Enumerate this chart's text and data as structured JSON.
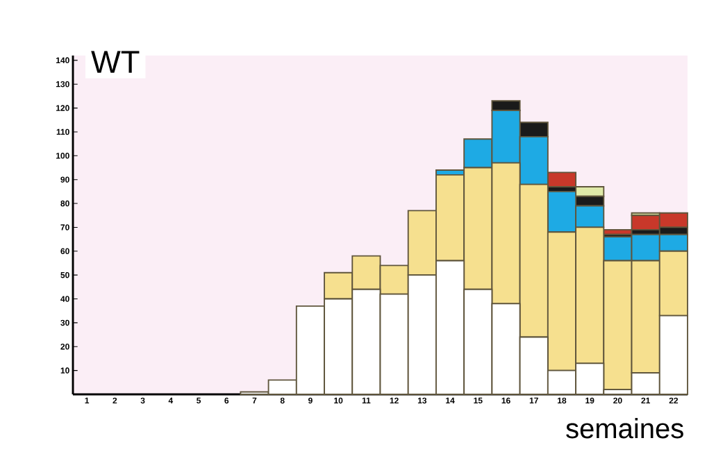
{
  "chart_data": {
    "type": "bar",
    "stacked": true,
    "annotations": [
      "WT"
    ],
    "xlabel": "semaines",
    "categories": [
      "1",
      "2",
      "3",
      "4",
      "5",
      "6",
      "7",
      "8",
      "9",
      "10",
      "11",
      "12",
      "13",
      "14",
      "15",
      "16",
      "17",
      "18",
      "19",
      "20",
      "21",
      "22"
    ],
    "series": [
      {
        "color": "#ffffff",
        "values": [
          0,
          0,
          0,
          0,
          0,
          0,
          1,
          6,
          37,
          40,
          44,
          42,
          50,
          56,
          44,
          38,
          24,
          10,
          13,
          2,
          9,
          33
        ]
      },
      {
        "color": "#f6e08f",
        "values": [
          0,
          0,
          0,
          0,
          0,
          0,
          0,
          0,
          0,
          11,
          14,
          12,
          27,
          36,
          51,
          59,
          64,
          58,
          57,
          54,
          47,
          27
        ]
      },
      {
        "color": "#1eaae4",
        "values": [
          0,
          0,
          0,
          0,
          0,
          0,
          0,
          0,
          0,
          0,
          0,
          0,
          0,
          2,
          12,
          22,
          20,
          17,
          9,
          10,
          11,
          7
        ]
      },
      {
        "color": "#1a1a1a",
        "values": [
          0,
          0,
          0,
          0,
          0,
          0,
          0,
          0,
          0,
          0,
          0,
          0,
          0,
          0,
          0,
          4,
          6,
          2,
          4,
          1,
          2,
          3
        ]
      },
      {
        "color": "#c8382a",
        "values": [
          0,
          0,
          0,
          0,
          0,
          0,
          0,
          0,
          0,
          0,
          0,
          0,
          0,
          0,
          0,
          0,
          0,
          6,
          0,
          2,
          6,
          6
        ]
      },
      {
        "color": "#dfe9a8",
        "values": [
          0,
          0,
          0,
          0,
          0,
          0,
          0,
          0,
          0,
          0,
          0,
          0,
          0,
          0,
          0,
          0,
          0,
          0,
          4,
          0,
          1,
          0
        ]
      }
    ],
    "ylim": [
      0,
      142
    ],
    "yticks": [
      10,
      20,
      30,
      40,
      50,
      60,
      70,
      80,
      90,
      100,
      110,
      120,
      130,
      140
    ]
  }
}
